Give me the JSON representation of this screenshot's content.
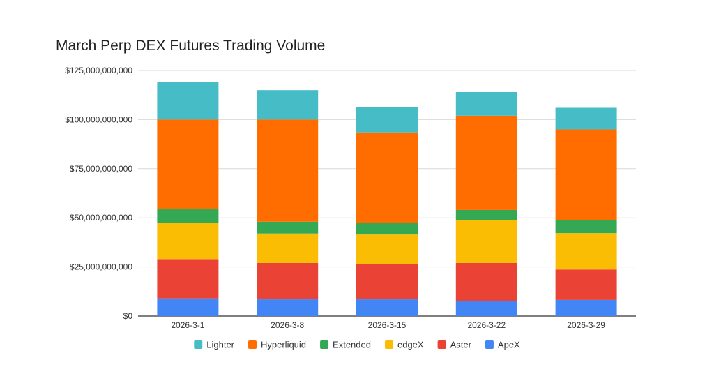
{
  "chart_data": {
    "type": "bar",
    "stacked": true,
    "title": "March Perp DEX Futures Trading Volume",
    "xlabel": "",
    "ylabel": "",
    "ylim": [
      0,
      125000000000
    ],
    "y_ticks": [
      {
        "value": 0,
        "label": "$0"
      },
      {
        "value": 25000000000,
        "label": "$25,000,000,000"
      },
      {
        "value": 50000000000,
        "label": "$50,000,000,000"
      },
      {
        "value": 75000000000,
        "label": "$75,000,000,000"
      },
      {
        "value": 100000000000,
        "label": "$100,000,000,000"
      },
      {
        "value": 125000000000,
        "label": "$125,000,000,000"
      }
    ],
    "grid": true,
    "legend_position": "bottom",
    "categories": [
      "2026-3-1",
      "2026-3-8",
      "2026-3-15",
      "2026-3-22",
      "2026-3-29"
    ],
    "series": [
      {
        "name": "ApeX",
        "color": "#4285f4",
        "values": [
          9000000000,
          8500000000,
          8500000000,
          7500000000,
          8200000000
        ]
      },
      {
        "name": "Aster",
        "color": "#ea4335",
        "values": [
          20000000000,
          18500000000,
          18000000000,
          19500000000,
          15500000000
        ]
      },
      {
        "name": "edgeX",
        "color": "#fbbc04",
        "values": [
          18500000000,
          15000000000,
          15000000000,
          22000000000,
          18500000000
        ]
      },
      {
        "name": "Extended",
        "color": "#34a853",
        "values": [
          7000000000,
          6000000000,
          6000000000,
          5000000000,
          6800000000
        ]
      },
      {
        "name": "Hyperliquid",
        "color": "#ff6d01",
        "values": [
          45500000000,
          52000000000,
          46000000000,
          48000000000,
          46000000000
        ]
      },
      {
        "name": "Lighter",
        "color": "#46bdc6",
        "values": [
          19000000000,
          15000000000,
          13000000000,
          12000000000,
          11000000000
        ]
      }
    ],
    "legend_order": [
      "Lighter",
      "Hyperliquid",
      "Extended",
      "edgeX",
      "Aster",
      "ApeX"
    ]
  }
}
